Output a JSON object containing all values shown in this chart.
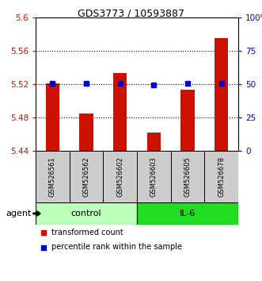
{
  "title": "GDS3773 / 10593887",
  "samples": [
    "GSM526561",
    "GSM526562",
    "GSM526602",
    "GSM526603",
    "GSM526605",
    "GSM526678"
  ],
  "bar_values": [
    5.521,
    5.485,
    5.533,
    5.462,
    5.513,
    5.575
  ],
  "bar_bottom": 5.44,
  "blue_markers_left": [
    5.521,
    5.521,
    5.521,
    5.519,
    5.521,
    5.521
  ],
  "ylim_left": [
    5.44,
    5.6
  ],
  "ylim_right": [
    0,
    100
  ],
  "yticks_left": [
    5.44,
    5.48,
    5.52,
    5.56,
    5.6
  ],
  "ytick_labels_left": [
    "5.44",
    "5.48",
    "5.52",
    "5.56",
    "5.6"
  ],
  "yticks_right": [
    0,
    25,
    50,
    75,
    100
  ],
  "ytick_labels_right": [
    "0",
    "25",
    "50",
    "75",
    "100%"
  ],
  "hlines": [
    5.48,
    5.52,
    5.56
  ],
  "bar_color": "#cc1100",
  "marker_color": "#0000cc",
  "groups": [
    {
      "label": "control",
      "indices": [
        0,
        1,
        2
      ],
      "color": "#bbffbb"
    },
    {
      "label": "IL-6",
      "indices": [
        3,
        4,
        5
      ],
      "color": "#22dd22"
    }
  ],
  "agent_label": "agent",
  "legend_items": [
    {
      "label": "transformed count",
      "color": "#cc1100"
    },
    {
      "label": "percentile rank within the sample",
      "color": "#0000cc"
    }
  ],
  "left_tick_color": "#cc1100",
  "right_tick_color": "#0000cc",
  "bar_width": 0.4
}
